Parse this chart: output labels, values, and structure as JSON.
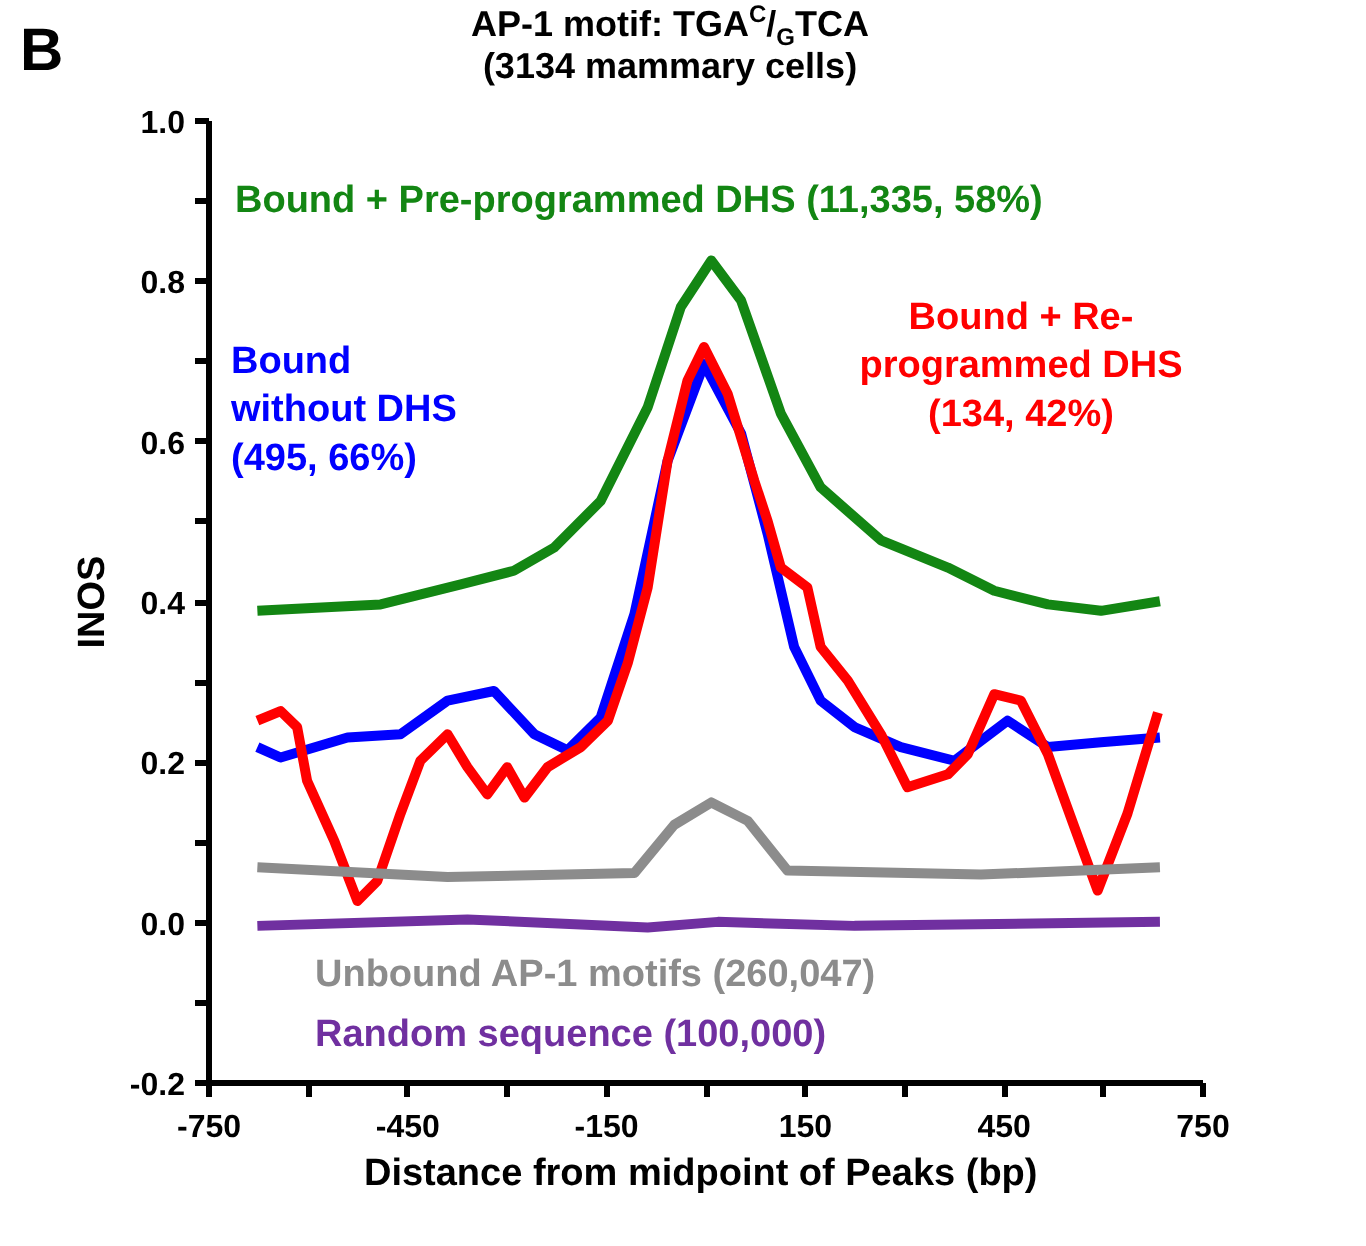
{
  "chart_data": {
    "type": "line",
    "title": "AP-1 motif: TGA$^{C}$/$_{G}$TCA\n(3134 mammary cells)",
    "xlabel": "Distance from midpoint  of Peaks (bp)",
    "ylabel": "INOS",
    "annotations": [
      "B"
    ],
    "xlim": [
      -750,
      750
    ],
    "ylim": [
      -0.2,
      1.0
    ],
    "xticks": [
      -750,
      {
        "value": -600,
        "label": null
      },
      -450,
      {
        "value": -300,
        "label": null
      },
      -150,
      {
        "value": 0,
        "label": null
      },
      150,
      {
        "value": 300,
        "label": null
      },
      450,
      {
        "value": 600,
        "label": null
      },
      750
    ],
    "yticks": [
      -0.2,
      {
        "value": -0.1,
        "label": null
      },
      {
        "value": 0,
        "label": "0.0"
      },
      {
        "value": 0.1,
        "label": null
      },
      0.2,
      {
        "value": 0.3,
        "label": null
      },
      0.4,
      {
        "value": 0.5,
        "label": null
      },
      0.6,
      {
        "value": 0.7,
        "label": null
      },
      0.8,
      {
        "value": 0.9,
        "label": null
      },
      {
        "value": 1.0,
        "label": "1.0"
      }
    ],
    "grid": false,
    "marker": "none",
    "line_style": "solid",
    "series": [
      {
        "name": "Bound + Pre-programmed DHS (11,335, 58%)",
        "color": "#138613",
        "x": [
          -677,
          -491,
          -370,
          -290,
          -229,
          -159,
          -88,
          -38,
          8,
          53,
          113,
          173,
          264,
          365,
          435,
          516,
          596,
          685
        ],
        "values": [
          0.389,
          0.397,
          0.422,
          0.439,
          0.468,
          0.526,
          0.643,
          0.768,
          0.826,
          0.776,
          0.635,
          0.543,
          0.477,
          0.443,
          0.414,
          0.397,
          0.389,
          0.401
        ]
      },
      {
        "name": "Bound\nwithout DHS\n(495, 66%)",
        "color": "#0000ff",
        "x": [
          -677,
          -642,
          -541,
          -461,
          -390,
          -320,
          -259,
          -209,
          -159,
          -108,
          -58,
          -3,
          53,
          93,
          133,
          173,
          224,
          294,
          375,
          455,
          516,
          596,
          685
        ],
        "values": [
          0.219,
          0.206,
          0.231,
          0.235,
          0.277,
          0.289,
          0.235,
          0.215,
          0.256,
          0.385,
          0.576,
          0.697,
          0.61,
          0.485,
          0.344,
          0.277,
          0.244,
          0.219,
          0.202,
          0.252,
          0.219,
          0.225,
          0.231
        ]
      },
      {
        "name": "Bound + Re-\nprogrammed DHS\n(134, 42%)",
        "color": "#ff0000",
        "x": [
          -677,
          -642,
          -617,
          -602,
          -561,
          -526,
          -496,
          -461,
          -431,
          -390,
          -360,
          -330,
          -300,
          -274,
          -239,
          -189,
          -148,
          -118,
          -88,
          -58,
          -28,
          -3,
          33,
          73,
          93,
          113,
          153,
          173,
          214,
          264,
          304,
          365,
          395,
          435,
          475,
          516,
          556,
          591,
          636,
          682
        ],
        "values": [
          0.252,
          0.264,
          0.244,
          0.177,
          0.102,
          0.027,
          0.052,
          0.136,
          0.202,
          0.235,
          0.194,
          0.16,
          0.194,
          0.156,
          0.194,
          0.219,
          0.252,
          0.324,
          0.418,
          0.576,
          0.676,
          0.718,
          0.659,
          0.551,
          0.501,
          0.443,
          0.418,
          0.344,
          0.302,
          0.235,
          0.169,
          0.185,
          0.21,
          0.285,
          0.277,
          0.21,
          0.119,
          0.04,
          0.136,
          0.262
        ]
      },
      {
        "name": "Unbound AP-1 motifs (260,047)",
        "color": "#8c8c8c",
        "x": [
          -677,
          -390,
          -108,
          -48,
          8,
          63,
          123,
          415,
          685
        ],
        "values": [
          0.069,
          0.057,
          0.062,
          0.122,
          0.15,
          0.127,
          0.065,
          0.06,
          0.069
        ]
      },
      {
        "name": "Random sequence (100,000)",
        "color": "#7030a0",
        "x": [
          -677,
          -360,
          -88,
          18,
          224,
          685
        ],
        "values": [
          -0.004,
          0.004,
          -0.006,
          0.001,
          -0.004,
          0.001
        ]
      }
    ]
  }
}
